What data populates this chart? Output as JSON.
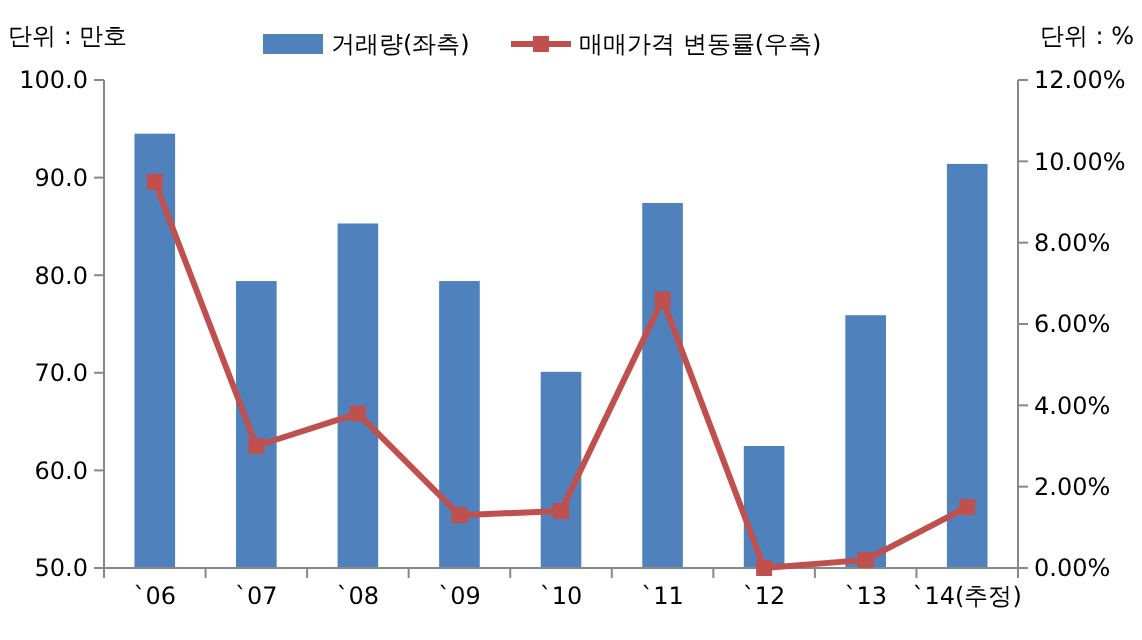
{
  "chart_data": {
    "type": "bar",
    "ylabel": "단위 : 만호",
    "y2label": "단위 : %",
    "categories": [
      "`06",
      "`07",
      "`08",
      "`09",
      "`10",
      "`11",
      "`12",
      "`13",
      "`14(추정)"
    ],
    "series": [
      {
        "name": "거래량(좌측)",
        "color": "#4f81bd",
        "values": [
          94.5,
          79.4,
          85.3,
          79.4,
          70.1,
          87.4,
          62.5,
          75.9,
          91.4
        ]
      },
      {
        "name": "매매가격 변동률(우측)",
        "type": "line",
        "axis": "y2",
        "color": "#c0504d",
        "marker": "square",
        "values": [
          9.5,
          3.0,
          3.8,
          1.3,
          1.4,
          6.6,
          0.0,
          0.2,
          1.5
        ]
      }
    ],
    "ylim": [
      50,
      100
    ],
    "yticks": [
      {
        "value": 50,
        "label": "50.0"
      },
      {
        "value": 60,
        "label": "60.0"
      },
      {
        "value": 70,
        "label": "70.0"
      },
      {
        "value": 80,
        "label": "80.0"
      },
      {
        "value": 90,
        "label": "90.0"
      },
      {
        "value": 100,
        "label": "100.0"
      }
    ],
    "y2lim": [
      0,
      12
    ],
    "y2ticks": [
      {
        "value": 0,
        "label": "0.00%"
      },
      {
        "value": 2,
        "label": "2.00%"
      },
      {
        "value": 4,
        "label": "4.00%"
      },
      {
        "value": 6,
        "label": "6.00%"
      },
      {
        "value": 8,
        "label": "8.00%"
      },
      {
        "value": 10,
        "label": "10.00%"
      },
      {
        "value": 12,
        "label": "12.00%"
      }
    ],
    "legend": "top",
    "grid": false
  }
}
